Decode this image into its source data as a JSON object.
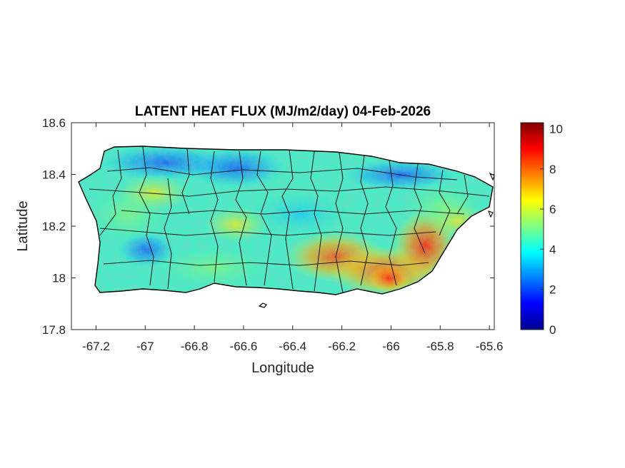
{
  "chart_data": {
    "type": "heatmap",
    "title": "LATENT HEAT FLUX (MJ/m2/day) 04-Feb-2026",
    "xlabel": "Longitude",
    "ylabel": "Latitude",
    "xlim": [
      -67.3,
      -65.58
    ],
    "ylim": [
      17.8,
      18.6
    ],
    "xticks": [
      -67.2,
      -67,
      -66.8,
      -66.6,
      -66.4,
      -66.2,
      -66,
      -65.8,
      -65.6
    ],
    "xtick_labels": [
      "-67.2",
      "-67",
      "-66.8",
      "-66.6",
      "-66.4",
      "-66.2",
      "-66",
      "-65.8",
      "-65.6"
    ],
    "yticks": [
      17.8,
      18,
      18.2,
      18.4,
      18.6
    ],
    "ytick_labels": [
      "17.8",
      "18",
      "18.2",
      "18.4",
      "18.6"
    ],
    "colorbar": {
      "colormap": "jet",
      "clim": [
        0,
        10.3
      ],
      "ticks": [
        0,
        2,
        4,
        6,
        8,
        10
      ],
      "tick_labels": [
        "0",
        "2",
        "4",
        "6",
        "8",
        "10"
      ],
      "colors": [
        "#00008f",
        "#0000ff",
        "#0080ff",
        "#00ffff",
        "#80ff80",
        "#ffff00",
        "#ff8000",
        "#ff0000",
        "#800000"
      ]
    },
    "region": "Puerto Rico",
    "grid": false,
    "field_summary": {
      "northwest_coast": 3.2,
      "west_interior": 5.5,
      "central_north": 4.0,
      "central_interior": 5.0,
      "south_central": 7.5,
      "southeast": 8.8,
      "east_coast": 7.0,
      "northeast": 4.5
    }
  },
  "icons": [
    "colorbar",
    "map-outline"
  ]
}
